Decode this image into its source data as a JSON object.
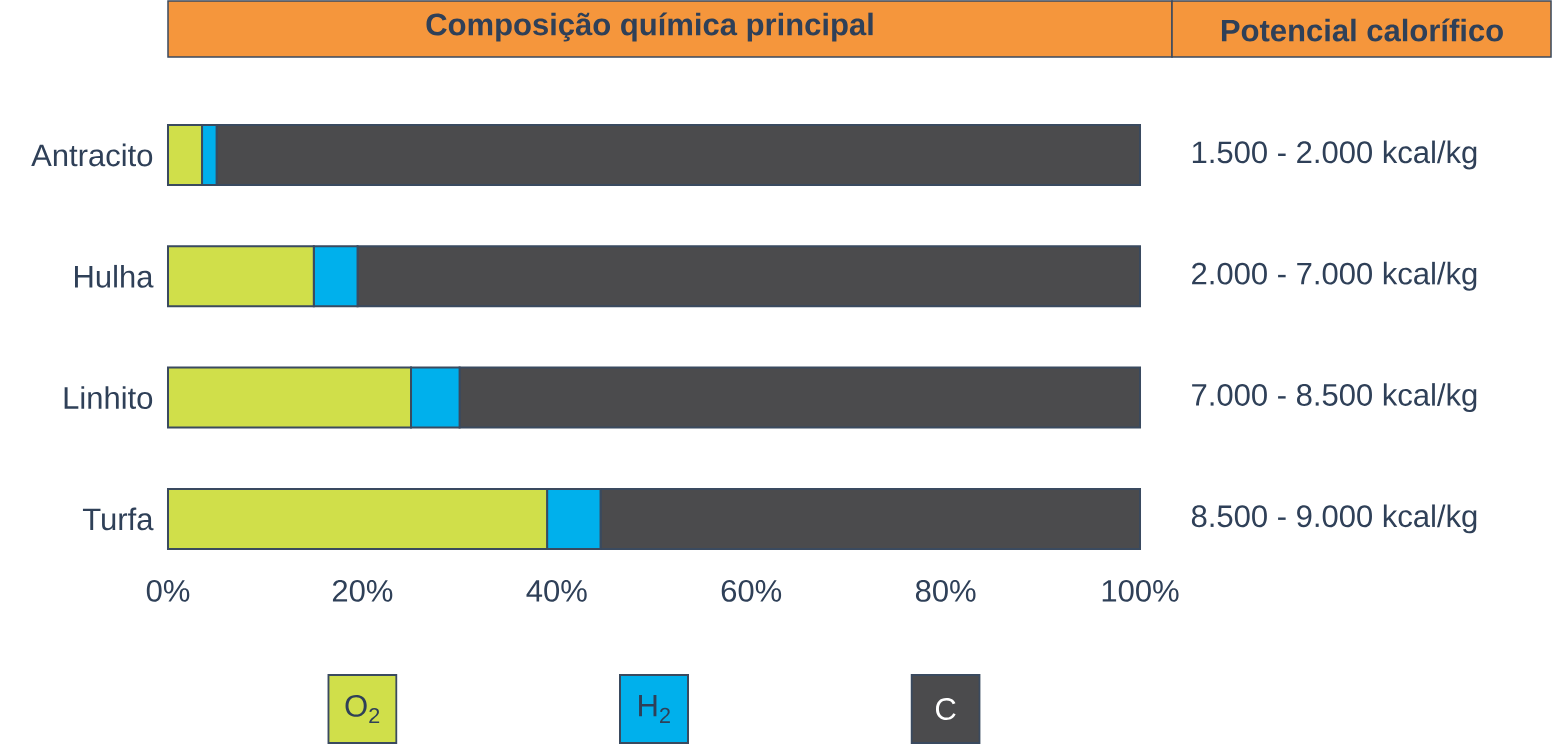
{
  "chart_data": {
    "type": "bar",
    "title": "Composição química principal",
    "stacked": true,
    "orientation": "horizontal",
    "categories": [
      "Antracito",
      "Hulha",
      "Linhito",
      "Turfa"
    ],
    "series": [
      {
        "name": "O$_{2}$",
        "color": "#d0df4a",
        "values": [
          3.5,
          15,
          25,
          39
        ]
      },
      {
        "name": "H$_{2}$",
        "color": "#00b0ec",
        "values": [
          1.5,
          4.5,
          5,
          5.5
        ]
      },
      {
        "name": "C",
        "color": "#4b4b4d",
        "values": [
          95,
          80.5,
          70,
          55.5
        ]
      }
    ],
    "xlim": [
      0,
      100
    ],
    "xticks": [
      {
        "value": 0,
        "label": "0%"
      },
      {
        "value": 20,
        "label": "20%"
      },
      {
        "value": 40,
        "label": "40%"
      },
      {
        "value": 60,
        "label": "60%"
      },
      {
        "value": 80,
        "label": "80%"
      },
      {
        "value": 100,
        "label": "100%"
      }
    ],
    "legend": "bottom",
    "annotations": [
      "Potencial calorífico",
      "1.500 - 2.000 kcal/kg",
      "2.000 - 7.000 kcal/kg",
      "7.000 - 8.500 kcal/kg",
      "8.500 - 9.000 kcal/kg"
    ]
  }
}
